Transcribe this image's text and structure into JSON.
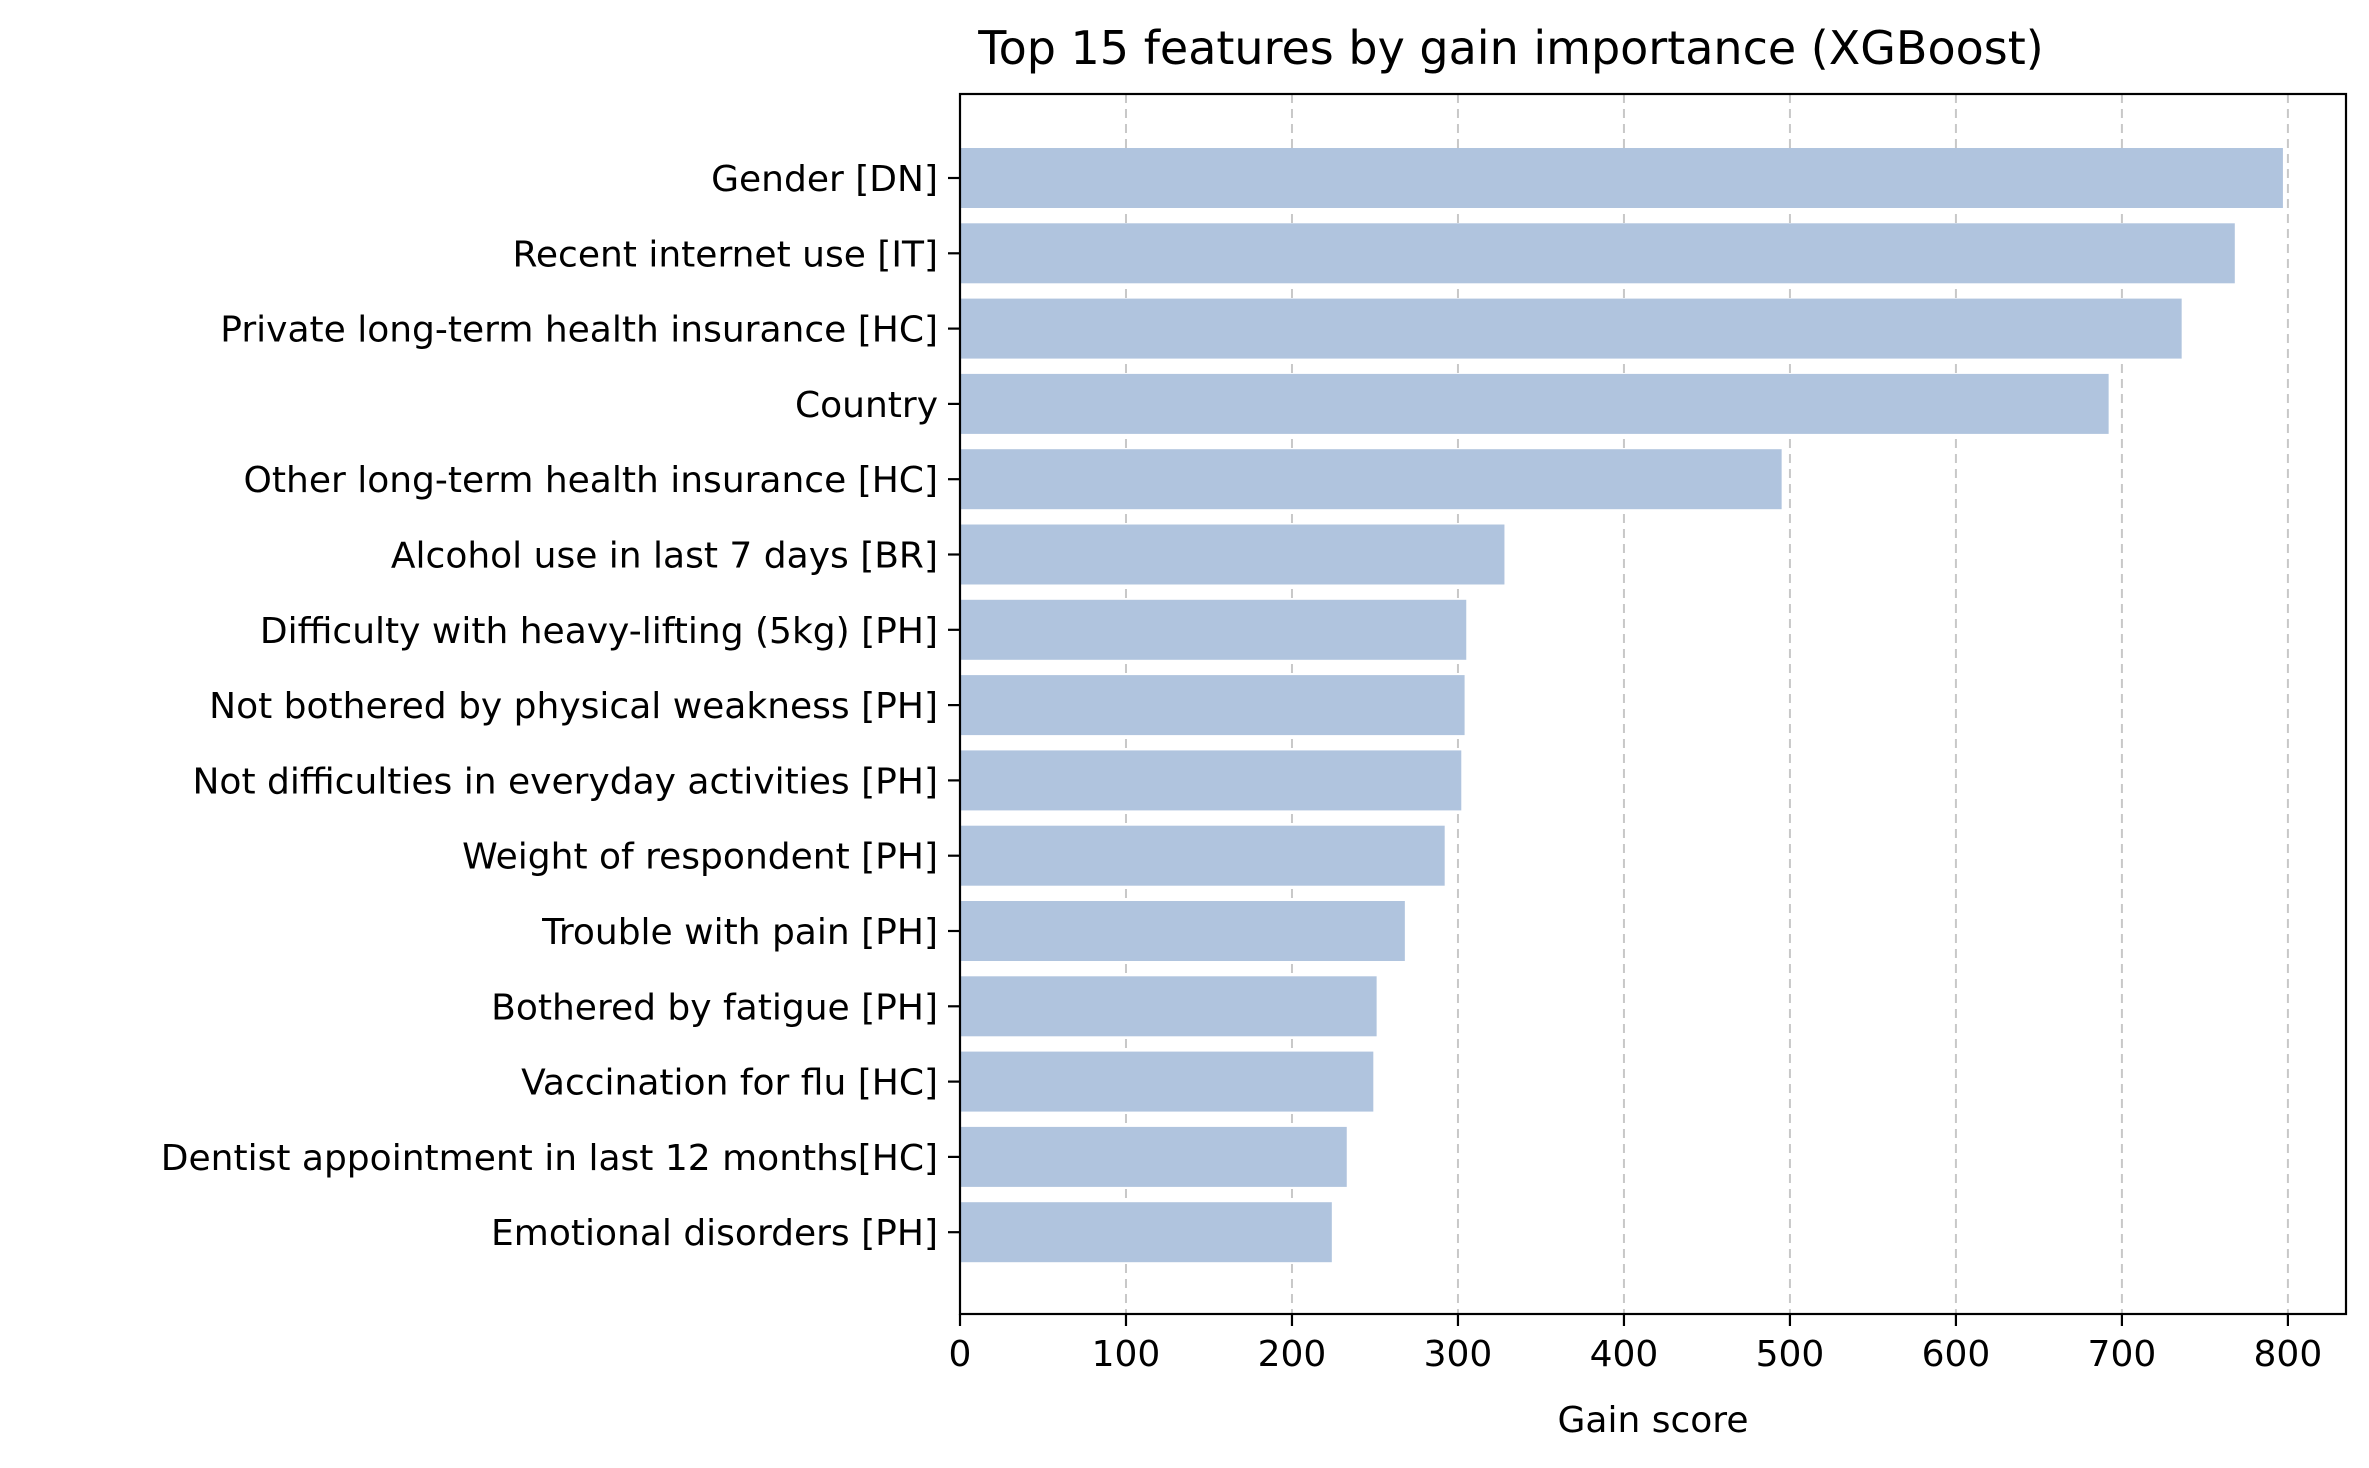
{
  "chart_data": {
    "type": "bar",
    "orientation": "horizontal",
    "title": "Top 15 features by gain importance (XGBoost)",
    "xlabel": "Gain score",
    "ylabel": "",
    "xlim": [
      0,
      835
    ],
    "xticks": [
      0,
      100,
      200,
      300,
      400,
      500,
      600,
      700,
      800
    ],
    "grid": "vertical dashed",
    "bar_color": "#b0c4de",
    "categories": [
      "Gender [DN]",
      "Recent internet use [IT]",
      "Private long-term health insurance [HC]",
      "Country",
      "Other long-term health insurance [HC]",
      "Alcohol use in last 7 days [BR]",
      "Difficulty with heavy-lifting (5kg) [PH]",
      "Not bothered by physical weakness [PH]",
      "Not difficulties in everyday activities [PH]",
      "Weight of respondent [PH]",
      "Trouble with pain [PH]",
      "Bothered by fatigue [PH]",
      "Vaccination for flu [HC]",
      "Dentist appointment in last 12 months[HC]",
      "Emotional disorders [PH]"
    ],
    "values": [
      797,
      768,
      736,
      692,
      495,
      328,
      305,
      304,
      302,
      292,
      268,
      251,
      249,
      233,
      224
    ]
  }
}
